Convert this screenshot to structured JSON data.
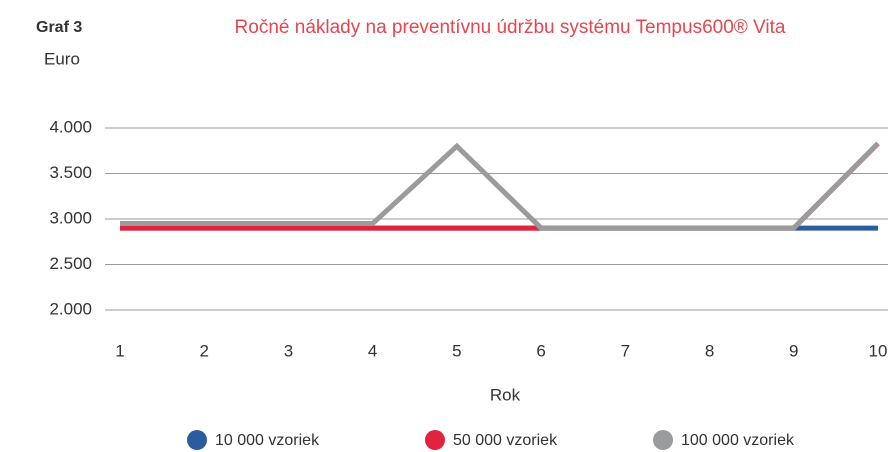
{
  "chart_data": {
    "type": "line",
    "label": "Graf 3",
    "title": "Ročné náklady na preventívnu údržbu systému Tempus600® Vita",
    "y_label": "Euro",
    "x_label": "Rok",
    "x": [
      1,
      2,
      3,
      4,
      5,
      6,
      7,
      8,
      9,
      10
    ],
    "xlim": [
      1,
      10
    ],
    "xticks": [
      1,
      2,
      3,
      4,
      5,
      6,
      7,
      8,
      9,
      10
    ],
    "ylim": [
      2000,
      4000
    ],
    "yticks": [
      {
        "value": 2000,
        "label": "2.000"
      },
      {
        "value": 2500,
        "label": "2.500"
      },
      {
        "value": 3000,
        "label": "3.000"
      },
      {
        "value": 3500,
        "label": "3.500"
      },
      {
        "value": 4000,
        "label": "4.000"
      }
    ],
    "grid": true,
    "legend": "bottom",
    "series": [
      {
        "name": "10 000 vzoriek",
        "color": "#2b5c9e",
        "values": [
          2900,
          2900,
          2900,
          2900,
          2900,
          2900,
          2900,
          2900,
          2900,
          2900
        ]
      },
      {
        "name": "50 000 vzoriek",
        "color": "#e1233d",
        "values": [
          2900,
          2900,
          2900,
          2900,
          2900,
          2900,
          2900,
          2900,
          2900,
          3830
        ]
      },
      {
        "name": "100 000 vzoriek",
        "color": "#9a9b9d",
        "values": [
          2950,
          2950,
          2950,
          2950,
          3800,
          2900,
          2900,
          2900,
          2900,
          3830
        ]
      }
    ]
  }
}
